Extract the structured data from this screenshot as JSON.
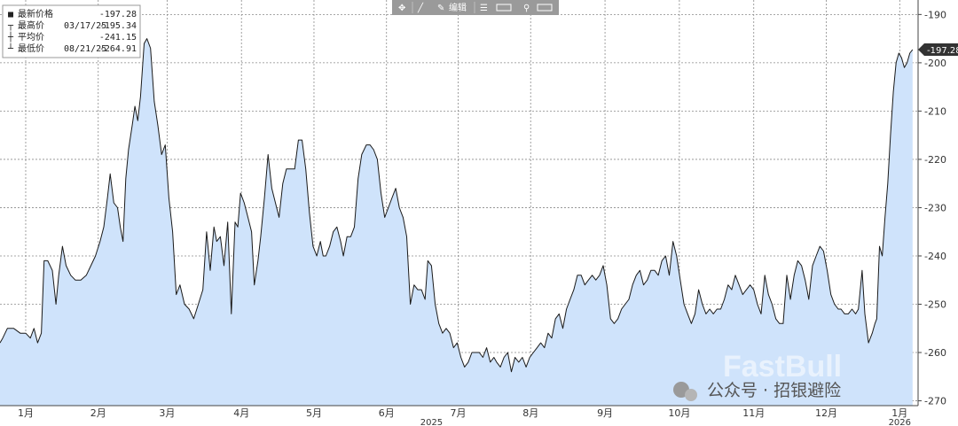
{
  "toolbar": {
    "tools": [
      "move-tool",
      "draw-tool",
      "edit-tool",
      "list-tool",
      "zoom-tool"
    ],
    "edit_label": "编辑"
  },
  "legend": {
    "rows": [
      {
        "marker": "■",
        "label": "最新价格",
        "date": "",
        "value": "-197.28"
      },
      {
        "marker": "┬",
        "label": "最高价",
        "date": "03/17/25",
        "value": "-195.34"
      },
      {
        "marker": "┼",
        "label": "平均价",
        "date": "",
        "value": "-241.15"
      },
      {
        "marker": "┴",
        "label": "最低价",
        "date": "08/21/25",
        "value": "-264.91"
      }
    ]
  },
  "last_value_tag": "-197.28",
  "watermark": {
    "brand": "FastBull",
    "account": "公众号 · 招银避险"
  },
  "colors": {
    "line": "#1a1a1a",
    "fill": "#cfe3fb",
    "grid": "#8a8a8a",
    "last_tag": "#333333",
    "toolbar": "#8f8f8f"
  },
  "chart_data": {
    "type": "area",
    "title": "",
    "xlabel": "",
    "ylabel": "",
    "ylim": [
      -271,
      -187
    ],
    "y_ticks": [
      -190,
      -200,
      -210,
      -220,
      -230,
      -240,
      -250,
      -260,
      -270
    ],
    "y_tick_labels": [
      "-190",
      "-200",
      "-210",
      "-220",
      "-230",
      "-240",
      "-250",
      "-260",
      "-270"
    ],
    "x_ticks": [
      {
        "label": "1月",
        "t": 0.028
      },
      {
        "label": "2月",
        "t": 0.107
      },
      {
        "label": "3月",
        "t": 0.182
      },
      {
        "label": "4月",
        "t": 0.263
      },
      {
        "label": "5月",
        "t": 0.342
      },
      {
        "label": "6月",
        "t": 0.421
      },
      {
        "label": "7月",
        "t": 0.499
      },
      {
        "label": "8月",
        "t": 0.578
      },
      {
        "label": "9月",
        "t": 0.659
      },
      {
        "label": "10月",
        "t": 0.74
      },
      {
        "label": "11月",
        "t": 0.821
      },
      {
        "label": "12月",
        "t": 0.9
      },
      {
        "label": "1月",
        "t": 0.98
      }
    ],
    "year_labels": [
      {
        "label": "2025",
        "t": 0.47
      },
      {
        "label": "2026",
        "t": 0.98
      }
    ],
    "grid": true,
    "series": [
      {
        "values": [
          [
            0.0,
            -258
          ],
          [
            0.003,
            -257
          ],
          [
            0.008,
            -255
          ],
          [
            0.015,
            -255
          ],
          [
            0.022,
            -256
          ],
          [
            0.028,
            -256
          ],
          [
            0.033,
            -257
          ],
          [
            0.037,
            -255
          ],
          [
            0.041,
            -258
          ],
          [
            0.045,
            -256
          ],
          [
            0.048,
            -241
          ],
          [
            0.052,
            -241
          ],
          [
            0.057,
            -243
          ],
          [
            0.061,
            -250
          ],
          [
            0.064,
            -244
          ],
          [
            0.068,
            -238
          ],
          [
            0.072,
            -242
          ],
          [
            0.077,
            -244
          ],
          [
            0.082,
            -245
          ],
          [
            0.088,
            -245
          ],
          [
            0.094,
            -244
          ],
          [
            0.099,
            -242
          ],
          [
            0.104,
            -240
          ],
          [
            0.109,
            -237
          ],
          [
            0.113,
            -234
          ],
          [
            0.117,
            -228
          ],
          [
            0.12,
            -223
          ],
          [
            0.124,
            -229
          ],
          [
            0.128,
            -230
          ],
          [
            0.131,
            -234
          ],
          [
            0.134,
            -237
          ],
          [
            0.137,
            -224
          ],
          [
            0.14,
            -218
          ],
          [
            0.144,
            -213
          ],
          [
            0.147,
            -209
          ],
          [
            0.15,
            -212
          ],
          [
            0.153,
            -207
          ],
          [
            0.157,
            -196
          ],
          [
            0.16,
            -195
          ],
          [
            0.164,
            -197
          ],
          [
            0.168,
            -208
          ],
          [
            0.172,
            -213
          ],
          [
            0.176,
            -219
          ],
          [
            0.18,
            -217
          ],
          [
            0.184,
            -228
          ],
          [
            0.188,
            -235
          ],
          [
            0.192,
            -248
          ],
          [
            0.196,
            -246
          ],
          [
            0.201,
            -250
          ],
          [
            0.206,
            -251
          ],
          [
            0.211,
            -253
          ],
          [
            0.216,
            -250
          ],
          [
            0.221,
            -247
          ],
          [
            0.225,
            -235
          ],
          [
            0.229,
            -243
          ],
          [
            0.233,
            -234
          ],
          [
            0.236,
            -237
          ],
          [
            0.24,
            -236
          ],
          [
            0.244,
            -242
          ],
          [
            0.248,
            -233
          ],
          [
            0.252,
            -252
          ],
          [
            0.256,
            -233
          ],
          [
            0.259,
            -234
          ],
          [
            0.262,
            -227
          ],
          [
            0.266,
            -229
          ],
          [
            0.27,
            -232
          ],
          [
            0.274,
            -235
          ],
          [
            0.277,
            -246
          ],
          [
            0.281,
            -241
          ],
          [
            0.284,
            -236
          ],
          [
            0.288,
            -228
          ],
          [
            0.292,
            -219
          ],
          [
            0.296,
            -226
          ],
          [
            0.3,
            -229
          ],
          [
            0.304,
            -232
          ],
          [
            0.308,
            -225
          ],
          [
            0.312,
            -222
          ],
          [
            0.317,
            -222
          ],
          [
            0.321,
            -222
          ],
          [
            0.325,
            -216
          ],
          [
            0.329,
            -216
          ],
          [
            0.333,
            -222
          ],
          [
            0.337,
            -231
          ],
          [
            0.341,
            -238
          ],
          [
            0.345,
            -240
          ],
          [
            0.349,
            -237
          ],
          [
            0.352,
            -240
          ],
          [
            0.355,
            -240
          ],
          [
            0.359,
            -238
          ],
          [
            0.363,
            -235
          ],
          [
            0.367,
            -234
          ],
          [
            0.371,
            -237
          ],
          [
            0.374,
            -240
          ],
          [
            0.378,
            -236
          ],
          [
            0.382,
            -236
          ],
          [
            0.386,
            -234
          ],
          [
            0.39,
            -224
          ],
          [
            0.394,
            -219
          ],
          [
            0.399,
            -217
          ],
          [
            0.403,
            -217
          ],
          [
            0.407,
            -218
          ],
          [
            0.411,
            -220
          ],
          [
            0.415,
            -227
          ],
          [
            0.419,
            -232
          ],
          [
            0.423,
            -230
          ],
          [
            0.427,
            -228
          ],
          [
            0.431,
            -226
          ],
          [
            0.435,
            -230
          ],
          [
            0.439,
            -232
          ],
          [
            0.443,
            -236
          ],
          [
            0.447,
            -250
          ],
          [
            0.451,
            -246
          ],
          [
            0.455,
            -247
          ],
          [
            0.459,
            -247
          ],
          [
            0.463,
            -249
          ],
          [
            0.466,
            -241
          ],
          [
            0.47,
            -242
          ],
          [
            0.474,
            -250
          ],
          [
            0.478,
            -254
          ],
          [
            0.482,
            -256
          ],
          [
            0.486,
            -255
          ],
          [
            0.49,
            -256
          ],
          [
            0.494,
            -259
          ],
          [
            0.498,
            -258
          ],
          [
            0.502,
            -261
          ],
          [
            0.506,
            -263
          ],
          [
            0.51,
            -262
          ],
          [
            0.514,
            -260
          ],
          [
            0.518,
            -260
          ],
          [
            0.522,
            -260
          ],
          [
            0.526,
            -261
          ],
          [
            0.53,
            -259
          ],
          [
            0.534,
            -262
          ],
          [
            0.538,
            -261
          ],
          [
            0.541,
            -262
          ],
          [
            0.545,
            -263
          ],
          [
            0.549,
            -261
          ],
          [
            0.553,
            -260
          ],
          [
            0.557,
            -264
          ],
          [
            0.561,
            -261
          ],
          [
            0.565,
            -262
          ],
          [
            0.569,
            -261
          ],
          [
            0.573,
            -263
          ],
          [
            0.577,
            -261
          ],
          [
            0.581,
            -260
          ],
          [
            0.585,
            -259
          ],
          [
            0.589,
            -258
          ],
          [
            0.593,
            -259
          ],
          [
            0.597,
            -256
          ],
          [
            0.601,
            -257
          ],
          [
            0.605,
            -253
          ],
          [
            0.609,
            -252
          ],
          [
            0.613,
            -255
          ],
          [
            0.617,
            -251
          ],
          [
            0.621,
            -249
          ],
          [
            0.625,
            -247
          ],
          [
            0.629,
            -244
          ],
          [
            0.633,
            -244
          ],
          [
            0.637,
            -246
          ],
          [
            0.641,
            -245
          ],
          [
            0.645,
            -244
          ],
          [
            0.649,
            -245
          ],
          [
            0.653,
            -244
          ],
          [
            0.657,
            -242
          ],
          [
            0.661,
            -246
          ],
          [
            0.665,
            -253
          ],
          [
            0.669,
            -254
          ],
          [
            0.673,
            -253
          ],
          [
            0.677,
            -251
          ],
          [
            0.681,
            -250
          ],
          [
            0.685,
            -249
          ],
          [
            0.689,
            -246
          ],
          [
            0.693,
            -244
          ],
          [
            0.697,
            -243
          ],
          [
            0.701,
            -246
          ],
          [
            0.705,
            -245
          ],
          [
            0.709,
            -243
          ],
          [
            0.713,
            -243
          ],
          [
            0.717,
            -244
          ],
          [
            0.721,
            -241
          ],
          [
            0.725,
            -240
          ],
          [
            0.729,
            -244
          ],
          [
            0.733,
            -237
          ],
          [
            0.737,
            -240
          ],
          [
            0.741,
            -245
          ],
          [
            0.745,
            -250
          ],
          [
            0.749,
            -252
          ],
          [
            0.753,
            -254
          ],
          [
            0.757,
            -252
          ],
          [
            0.761,
            -247
          ],
          [
            0.765,
            -250
          ],
          [
            0.769,
            -252
          ],
          [
            0.773,
            -251
          ],
          [
            0.777,
            -252
          ],
          [
            0.781,
            -251
          ],
          [
            0.785,
            -251
          ],
          [
            0.789,
            -249
          ],
          [
            0.793,
            -246
          ],
          [
            0.797,
            -247
          ],
          [
            0.801,
            -244
          ],
          [
            0.805,
            -246
          ],
          [
            0.809,
            -248
          ],
          [
            0.813,
            -247
          ],
          [
            0.817,
            -246
          ],
          [
            0.821,
            -247
          ],
          [
            0.825,
            -250
          ],
          [
            0.829,
            -252
          ],
          [
            0.833,
            -244
          ],
          [
            0.837,
            -248
          ],
          [
            0.841,
            -250
          ],
          [
            0.845,
            -253
          ],
          [
            0.849,
            -254
          ],
          [
            0.853,
            -254
          ],
          [
            0.857,
            -244
          ],
          [
            0.861,
            -249
          ],
          [
            0.865,
            -244
          ],
          [
            0.869,
            -241
          ],
          [
            0.873,
            -242
          ],
          [
            0.877,
            -245
          ],
          [
            0.881,
            -249
          ],
          [
            0.885,
            -242
          ],
          [
            0.889,
            -240
          ],
          [
            0.893,
            -238
          ],
          [
            0.897,
            -239
          ],
          [
            0.901,
            -243
          ],
          [
            0.905,
            -248
          ],
          [
            0.909,
            -250
          ],
          [
            0.913,
            -251
          ],
          [
            0.916,
            -251
          ],
          [
            0.92,
            -252
          ],
          [
            0.924,
            -252
          ],
          [
            0.928,
            -251
          ],
          [
            0.932,
            -252
          ],
          [
            0.935,
            -251
          ],
          [
            0.939,
            -243
          ],
          [
            0.942,
            -252
          ],
          [
            0.946,
            -258
          ],
          [
            0.95,
            -256
          ],
          [
            0.953,
            -254
          ],
          [
            0.955,
            -253
          ],
          [
            0.958,
            -238
          ],
          [
            0.961,
            -240
          ],
          [
            0.964,
            -232
          ],
          [
            0.967,
            -225
          ],
          [
            0.97,
            -215
          ],
          [
            0.973,
            -206
          ],
          [
            0.976,
            -200
          ],
          [
            0.979,
            -198
          ],
          [
            0.982,
            -199
          ],
          [
            0.985,
            -201
          ],
          [
            0.988,
            -200
          ],
          [
            0.991,
            -198
          ],
          [
            0.994,
            -197.28
          ]
        ]
      }
    ]
  }
}
